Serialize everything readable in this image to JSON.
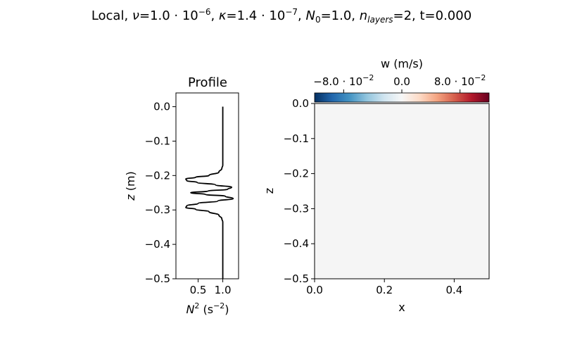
{
  "figure": {
    "title_parts": {
      "prefix": "Local, ",
      "nu_sym": "ν",
      "nu_val": "=1.0 · 10",
      "nu_exp": "−6",
      "sep1": ", ",
      "kappa_sym": "κ",
      "kappa_val": "=1.4 · 10",
      "kappa_exp": "−7",
      "sep2": ", ",
      "n0_sym": "N",
      "n0_sub": "0",
      "n0_val": "=1.0, ",
      "nl_sym": "n",
      "nl_sub": "layers",
      "nl_val": "=2, t=0.000"
    }
  },
  "chart_data": [
    {
      "type": "line",
      "title": "Profile",
      "xlabel_parts": {
        "sym": "N",
        "sup": "2",
        "unit_pre": " (s",
        "unit_sup": "−2",
        "unit_post": ")"
      },
      "ylabel_parts": {
        "sym": "z",
        "unit": " (m)"
      },
      "xlim": [
        0.05,
        1.32
      ],
      "ylim": [
        -0.5,
        0.04
      ],
      "xticks": [
        0.5,
        1.0
      ],
      "xtick_labels": [
        "0.5",
        "1.0"
      ],
      "yticks": [
        0.0,
        -0.1,
        -0.2,
        -0.3,
        -0.4,
        -0.5
      ],
      "ytick_labels": [
        "0.0",
        "−0.1",
        "−0.2",
        "−0.3",
        "−0.4",
        "−0.5"
      ],
      "series": [
        {
          "color": "#000000",
          "points": [
            [
              1.0,
              0.0
            ],
            [
              1.0,
              -0.05
            ],
            [
              1.0,
              -0.1
            ],
            [
              1.0,
              -0.15
            ],
            [
              1.0,
              -0.17
            ],
            [
              0.98,
              -0.18
            ],
            [
              0.92,
              -0.19
            ],
            [
              0.72,
              -0.2
            ],
            [
              0.45,
              -0.205
            ],
            [
              0.25,
              -0.21
            ],
            [
              0.27,
              -0.215
            ],
            [
              0.48,
              -0.22
            ],
            [
              0.85,
              -0.227
            ],
            [
              1.18,
              -0.234
            ],
            [
              1.1,
              -0.24
            ],
            [
              0.7,
              -0.245
            ],
            [
              0.35,
              -0.25
            ],
            [
              0.65,
              -0.255
            ],
            [
              1.05,
              -0.26
            ],
            [
              1.21,
              -0.267
            ],
            [
              0.9,
              -0.274
            ],
            [
              0.5,
              -0.281
            ],
            [
              0.27,
              -0.288
            ],
            [
              0.25,
              -0.293
            ],
            [
              0.45,
              -0.298
            ],
            [
              0.72,
              -0.305
            ],
            [
              0.92,
              -0.315
            ],
            [
              0.98,
              -0.325
            ],
            [
              1.0,
              -0.335
            ],
            [
              1.0,
              -0.4
            ],
            [
              1.0,
              -0.45
            ],
            [
              1.0,
              -0.5
            ]
          ]
        }
      ]
    },
    {
      "type": "heatmap",
      "xlabel": "x",
      "ylabel": "z",
      "xlim": [
        0.0,
        0.5
      ],
      "ylim": [
        -0.5,
        0.0
      ],
      "xticks": [
        0.0,
        0.2,
        0.4
      ],
      "xtick_labels": [
        "0.0",
        "0.2",
        "0.4"
      ],
      "yticks": [
        0.0,
        -0.1,
        -0.2,
        -0.3,
        -0.4,
        -0.5
      ],
      "ytick_labels": [
        "0.0",
        "−0.1",
        "−0.2",
        "−0.3",
        "−0.4",
        "−0.5"
      ],
      "field_value": 0.0,
      "field_color": "#f5f5f5",
      "colorbar": {
        "label": "w (m/s)",
        "range": [
          -0.12,
          0.12
        ],
        "ticks": [
          -0.08,
          0.0,
          0.08
        ],
        "tick_labels": [
          {
            "pre": "−8.0 · 10",
            "sup": "−2"
          },
          {
            "pre": "0.0",
            "sup": ""
          },
          {
            "pre": "8.0 · 10",
            "sup": "−2"
          }
        ],
        "cmap": "RdBu_r",
        "colors": [
          "#053061",
          "#2166ac",
          "#4393c3",
          "#92c5de",
          "#d1e5f0",
          "#f7f7f7",
          "#fddbc7",
          "#f4a582",
          "#d6604d",
          "#b2182b",
          "#67001f"
        ]
      }
    }
  ]
}
